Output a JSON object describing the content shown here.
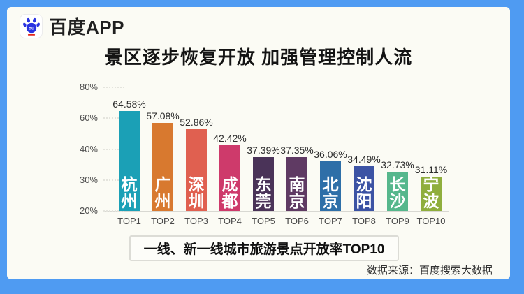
{
  "app": {
    "logo_text": "百度APP"
  },
  "poster": {
    "title": "景区逐步恢复开放 加强管理控制人流",
    "caption": "一线、新一线城市旅游景点开放率TOP10",
    "source": "数据来源：百度搜索大数据"
  },
  "colors": {
    "frame_blue": "#4F9BF2",
    "card_background": "#FBFBF4",
    "baidu_blue": "#2932E1",
    "baidu_red": "#E1251B"
  },
  "chart_data": {
    "type": "bar",
    "title": "一线、新一线城市旅游景点开放率TOP10",
    "categories": [
      "TOP1",
      "TOP2",
      "TOP3",
      "TOP4",
      "TOP5",
      "TOP6",
      "TOP7",
      "TOP8",
      "TOP9",
      "TOP10"
    ],
    "cities": [
      "杭州",
      "广州",
      "深圳",
      "成都",
      "东莞",
      "南京",
      "北京",
      "沈阳",
      "长沙",
      "宁波"
    ],
    "values": [
      64.58,
      57.08,
      52.86,
      42.42,
      37.39,
      37.35,
      36.06,
      34.49,
      32.73,
      31.11
    ],
    "value_labels": [
      "64.58%",
      "57.08%",
      "52.86%",
      "42.42%",
      "37.39%",
      "37.35%",
      "36.06%",
      "34.49%",
      "32.73%",
      "31.11%"
    ],
    "bar_colors": [
      "#1BA0B6",
      "#D8792F",
      "#E06050",
      "#CE3A6B",
      "#4A3358",
      "#5F3A63",
      "#2E6FA8",
      "#3C53A4",
      "#56B78C",
      "#8FAE3D"
    ],
    "y_ticks": [
      20,
      30,
      40,
      60,
      80
    ],
    "y_tick_labels": [
      "20%",
      "30%",
      "40%",
      "60%",
      "80%"
    ],
    "ylim": [
      20,
      80
    ],
    "unit": "%",
    "grid": "short tick dashes only",
    "legend": "none"
  }
}
